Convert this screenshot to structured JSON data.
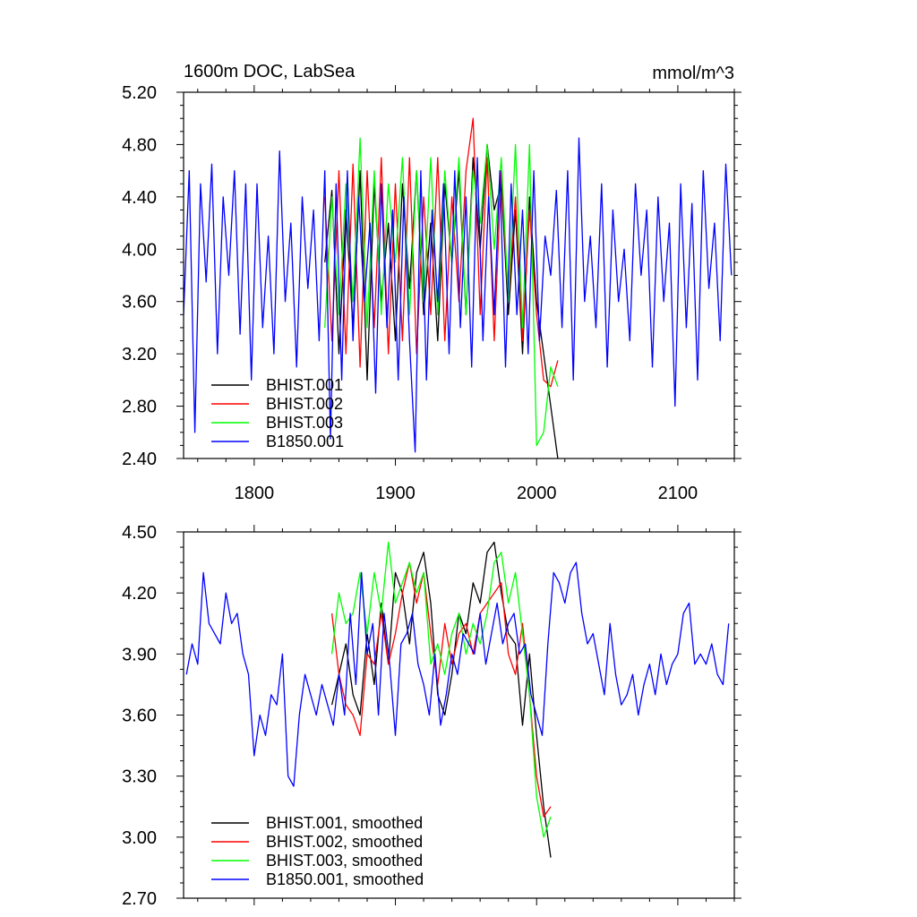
{
  "chart_data": [
    {
      "type": "line",
      "title": "1600m DOC, LabSea",
      "units": "mmol/m^3",
      "xlim": [
        1750,
        2140
      ],
      "ylim": [
        2.4,
        5.2
      ],
      "xticks": [
        1800,
        1900,
        2000,
        2100
      ],
      "xtick_labels": [
        "1800",
        "1900",
        "2000",
        "2100"
      ],
      "yticks": [
        2.4,
        2.8,
        3.2,
        3.6,
        4.0,
        4.4,
        4.8,
        5.2
      ],
      "ytick_labels": [
        "2.40",
        "2.80",
        "3.20",
        "3.60",
        "4.00",
        "4.40",
        "4.80",
        "5.20"
      ],
      "grid": false,
      "legend_position": "bottom-left",
      "series": [
        {
          "name": "BHIST.001",
          "color": "#000000",
          "x": [
            1850,
            1855,
            1860,
            1865,
            1870,
            1875,
            1880,
            1885,
            1890,
            1895,
            1900,
            1905,
            1910,
            1915,
            1920,
            1925,
            1930,
            1935,
            1940,
            1945,
            1950,
            1955,
            1960,
            1965,
            1970,
            1975,
            1980,
            1985,
            1990,
            1995,
            2000,
            2005,
            2010,
            2015
          ],
          "y": [
            3.9,
            4.45,
            3.2,
            4.3,
            3.4,
            4.6,
            3.0,
            4.5,
            3.6,
            4.2,
            3.3,
            4.5,
            3.7,
            4.6,
            3.5,
            4.2,
            3.3,
            4.5,
            3.9,
            4.6,
            3.5,
            4.7,
            4.0,
            4.8,
            4.3,
            4.5,
            3.5,
            4.3,
            3.2,
            4.4,
            3.6,
            3.2,
            2.8,
            2.4
          ]
        },
        {
          "name": "BHIST.002",
          "color": "#ff0000",
          "x": [
            1850,
            1855,
            1860,
            1865,
            1870,
            1875,
            1880,
            1885,
            1890,
            1895,
            1900,
            1905,
            1910,
            1915,
            1920,
            1925,
            1930,
            1935,
            1940,
            1945,
            1950,
            1955,
            1960,
            1965,
            1970,
            1975,
            1980,
            1985,
            1990,
            1995,
            2000,
            2005,
            2010,
            2015
          ],
          "y": [
            4.4,
            3.3,
            4.6,
            3.2,
            4.65,
            3.1,
            4.6,
            3.4,
            4.7,
            3.2,
            4.5,
            3.3,
            4.7,
            3.2,
            4.4,
            3.5,
            4.7,
            3.3,
            4.4,
            3.6,
            4.6,
            5.0,
            3.5,
            4.7,
            3.3,
            4.6,
            3.6,
            4.4,
            3.3,
            4.3,
            3.5,
            3.0,
            2.95,
            3.15
          ]
        },
        {
          "name": "BHIST.003",
          "color": "#00ff00",
          "x": [
            1850,
            1855,
            1860,
            1865,
            1870,
            1875,
            1880,
            1885,
            1890,
            1895,
            1900,
            1905,
            1910,
            1915,
            1920,
            1925,
            1930,
            1935,
            1940,
            1945,
            1950,
            1955,
            1960,
            1965,
            1970,
            1975,
            1980,
            1985,
            1990,
            1995,
            2000,
            2005,
            2010,
            2015
          ],
          "y": [
            3.4,
            4.4,
            3.5,
            4.5,
            3.6,
            4.85,
            3.4,
            4.6,
            3.5,
            4.5,
            3.9,
            4.7,
            3.5,
            4.6,
            3.6,
            4.7,
            3.5,
            4.6,
            3.9,
            4.7,
            3.5,
            4.6,
            4.2,
            4.8,
            4.0,
            4.7,
            3.6,
            4.8,
            3.4,
            4.8,
            2.5,
            2.6,
            3.1,
            2.95
          ]
        },
        {
          "name": "B1850.001",
          "color": "#0000ff",
          "x": [
            1750,
            1754,
            1758,
            1762,
            1766,
            1770,
            1774,
            1778,
            1782,
            1786,
            1790,
            1794,
            1798,
            1802,
            1806,
            1810,
            1814,
            1818,
            1822,
            1826,
            1830,
            1834,
            1838,
            1842,
            1846,
            1850,
            1854,
            1858,
            1862,
            1866,
            1870,
            1874,
            1878,
            1882,
            1886,
            1890,
            1894,
            1898,
            1902,
            1906,
            1910,
            1914,
            1918,
            1922,
            1926,
            1930,
            1934,
            1938,
            1942,
            1946,
            1950,
            1954,
            1958,
            1962,
            1966,
            1970,
            1974,
            1978,
            1982,
            1986,
            1990,
            1994,
            1998,
            2002,
            2006,
            2010,
            2014,
            2018,
            2022,
            2026,
            2030,
            2034,
            2038,
            2042,
            2046,
            2050,
            2054,
            2058,
            2062,
            2066,
            2070,
            2074,
            2078,
            2082,
            2086,
            2090,
            2094,
            2098,
            2102,
            2106,
            2110,
            2114,
            2118,
            2122,
            2126,
            2130,
            2134,
            2138
          ],
          "y": [
            3.5,
            4.6,
            2.6,
            4.5,
            3.75,
            4.65,
            3.2,
            4.4,
            3.8,
            4.6,
            3.35,
            4.5,
            3.0,
            4.5,
            3.4,
            4.1,
            3.2,
            4.75,
            3.6,
            4.2,
            3.1,
            4.4,
            3.7,
            4.3,
            3.3,
            4.6,
            2.55,
            4.5,
            3.0,
            4.6,
            3.3,
            4.4,
            3.6,
            4.2,
            2.9,
            4.5,
            3.4,
            4.3,
            3.0,
            4.4,
            3.3,
            2.45,
            4.6,
            3.0,
            4.3,
            3.6,
            4.5,
            3.2,
            4.6,
            3.4,
            4.4,
            3.1,
            4.7,
            3.3,
            4.4,
            3.5,
            4.6,
            3.1,
            4.5,
            3.5,
            4.3,
            3.2,
            4.6,
            3.3,
            4.1,
            3.8,
            4.45,
            3.4,
            4.6,
            3.0,
            4.85,
            3.6,
            4.1,
            3.4,
            4.5,
            3.1,
            4.3,
            3.6,
            4.0,
            3.3,
            4.5,
            3.8,
            4.3,
            3.1,
            4.4,
            3.6,
            4.2,
            2.8,
            4.5,
            3.4,
            4.35,
            3.0,
            4.6,
            3.7,
            4.2,
            3.3,
            4.65,
            3.8
          ]
        }
      ]
    },
    {
      "type": "line",
      "xlim": [
        1750,
        2140
      ],
      "ylim": [
        2.7,
        4.5
      ],
      "xticks": [
        1800,
        1900,
        2000,
        2100
      ],
      "yticks": [
        2.7,
        3.0,
        3.3,
        3.6,
        3.9,
        4.2,
        4.5
      ],
      "ytick_labels": [
        "2.70",
        "3.00",
        "3.30",
        "3.60",
        "3.90",
        "4.20",
        "4.50"
      ],
      "grid": false,
      "legend_position": "bottom-left",
      "series": [
        {
          "name": "BHIST.001, smoothed",
          "color": "#000000",
          "x": [
            1855,
            1860,
            1865,
            1870,
            1875,
            1880,
            1885,
            1890,
            1895,
            1900,
            1905,
            1910,
            1915,
            1920,
            1925,
            1930,
            1935,
            1940,
            1945,
            1950,
            1955,
            1960,
            1965,
            1970,
            1975,
            1980,
            1985,
            1990,
            1995,
            2000,
            2005,
            2010
          ],
          "y": [
            3.65,
            3.8,
            3.95,
            3.7,
            3.6,
            4.0,
            3.75,
            4.15,
            3.85,
            4.3,
            4.2,
            3.95,
            4.3,
            4.4,
            4.15,
            3.7,
            3.6,
            3.8,
            4.1,
            4.0,
            4.25,
            4.15,
            4.4,
            4.45,
            4.2,
            4.0,
            3.95,
            3.55,
            3.9,
            3.5,
            3.15,
            2.9
          ]
        },
        {
          "name": "BHIST.002, smoothed",
          "color": "#ff0000",
          "x": [
            1855,
            1860,
            1865,
            1870,
            1875,
            1880,
            1885,
            1890,
            1895,
            1900,
            1905,
            1910,
            1915,
            1920,
            1925,
            1930,
            1935,
            1940,
            1945,
            1950,
            1955,
            1960,
            1965,
            1970,
            1975,
            1980,
            1985,
            1990,
            1995,
            2000,
            2005,
            2010
          ],
          "y": [
            4.1,
            3.8,
            3.65,
            3.6,
            3.5,
            3.9,
            3.85,
            4.1,
            3.85,
            4.0,
            4.2,
            4.35,
            4.15,
            4.3,
            4.0,
            3.75,
            4.05,
            3.85,
            4.0,
            4.05,
            3.9,
            4.1,
            4.15,
            4.2,
            4.25,
            3.9,
            3.8,
            4.05,
            3.7,
            3.3,
            3.1,
            3.15
          ]
        },
        {
          "name": "BHIST.003, smoothed",
          "color": "#00ff00",
          "x": [
            1855,
            1860,
            1865,
            1870,
            1875,
            1880,
            1885,
            1890,
            1895,
            1900,
            1905,
            1910,
            1915,
            1920,
            1925,
            1930,
            1935,
            1940,
            1945,
            1950,
            1955,
            1960,
            1965,
            1970,
            1975,
            1980,
            1985,
            1990,
            1995,
            2000,
            2005,
            2010
          ],
          "y": [
            3.9,
            4.2,
            4.05,
            4.1,
            4.3,
            4.0,
            4.3,
            4.1,
            4.45,
            4.15,
            4.25,
            4.35,
            4.2,
            4.3,
            3.85,
            3.95,
            3.8,
            4.0,
            4.1,
            3.9,
            4.05,
            3.95,
            4.1,
            4.35,
            4.4,
            4.15,
            4.3,
            4.0,
            3.7,
            3.2,
            3.0,
            3.1
          ]
        },
        {
          "name": "B1850.001, smoothed",
          "color": "#0000ff",
          "x": [
            1752,
            1756,
            1760,
            1764,
            1768,
            1772,
            1776,
            1780,
            1784,
            1788,
            1792,
            1796,
            1800,
            1804,
            1808,
            1812,
            1816,
            1820,
            1824,
            1828,
            1832,
            1836,
            1840,
            1844,
            1848,
            1852,
            1856,
            1860,
            1864,
            1868,
            1872,
            1876,
            1880,
            1884,
            1888,
            1892,
            1896,
            1900,
            1904,
            1908,
            1912,
            1916,
            1920,
            1924,
            1928,
            1932,
            1936,
            1940,
            1944,
            1948,
            1952,
            1956,
            1960,
            1964,
            1968,
            1972,
            1976,
            1980,
            1984,
            1988,
            1992,
            1996,
            2000,
            2004,
            2008,
            2012,
            2016,
            2020,
            2024,
            2028,
            2032,
            2036,
            2040,
            2044,
            2048,
            2052,
            2056,
            2060,
            2064,
            2068,
            2072,
            2076,
            2080,
            2084,
            2088,
            2092,
            2096,
            2100,
            2104,
            2108,
            2112,
            2116,
            2120,
            2124,
            2128,
            2132,
            2136
          ],
          "y": [
            3.8,
            3.95,
            3.85,
            4.3,
            4.05,
            4.0,
            3.95,
            4.2,
            4.05,
            4.1,
            3.9,
            3.8,
            3.4,
            3.6,
            3.5,
            3.7,
            3.65,
            3.9,
            3.3,
            3.25,
            3.6,
            3.8,
            3.7,
            3.6,
            3.75,
            3.65,
            3.55,
            3.8,
            3.6,
            4.1,
            3.75,
            4.3,
            3.9,
            4.05,
            3.6,
            4.1,
            3.85,
            3.5,
            3.95,
            4.0,
            4.1,
            3.85,
            3.75,
            3.6,
            3.9,
            3.55,
            3.7,
            3.9,
            3.8,
            4.0,
            3.95,
            3.9,
            4.1,
            3.85,
            4.0,
            4.15,
            3.95,
            4.05,
            4.1,
            3.9,
            3.95,
            3.7,
            3.6,
            3.5,
            3.95,
            4.3,
            4.25,
            4.15,
            4.3,
            4.35,
            4.1,
            3.95,
            4.0,
            3.85,
            3.7,
            4.05,
            3.8,
            3.65,
            3.7,
            3.8,
            3.6,
            3.75,
            3.85,
            3.7,
            3.9,
            3.75,
            3.85,
            3.9,
            4.1,
            4.15,
            3.85,
            3.9,
            3.85,
            3.95,
            3.8,
            3.75,
            4.05
          ]
        }
      ]
    }
  ]
}
